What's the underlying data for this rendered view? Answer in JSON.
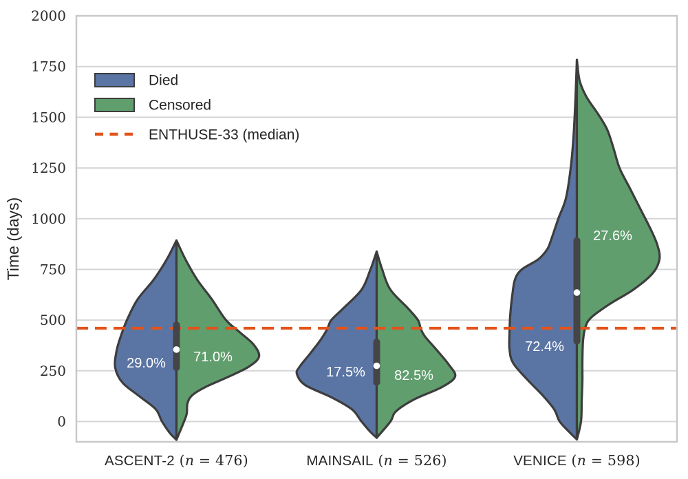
{
  "figure": {
    "background": "#ffffff"
  },
  "colors": {
    "died_fill": "#5a74a4",
    "censored_fill": "#609e6e",
    "violin_outline": "#3d3d3d",
    "inner_box": "#454547",
    "median_dot": "#ffffff",
    "reference_line": "#e2531c",
    "grid_line": "#d6d6da",
    "spine": "#c8c8cc",
    "text": "#262626"
  },
  "chart_data": {
    "type": "violin-split",
    "title": "",
    "xlabel": "",
    "ylabel": "Time (days)",
    "ylim": [
      -100,
      2000
    ],
    "yticks": [
      0,
      250,
      500,
      750,
      1000,
      1250,
      1500,
      1750,
      2000
    ],
    "grid": "horizontal",
    "legend": {
      "position": "upper-left",
      "entries": [
        {
          "label": "Died",
          "type": "patch",
          "color": "#5a74a4"
        },
        {
          "label": "Censored",
          "type": "patch",
          "color": "#609e6e"
        },
        {
          "label": "ENTHUSE-33 (median)",
          "type": "dashed-line",
          "color": "#e2531c"
        }
      ]
    },
    "reference_line": {
      "label": "ENTHUSE-33 (median)",
      "value_days": 460,
      "style": "dashed"
    },
    "groups": [
      {
        "name": "ASCENT-2",
        "n": 476,
        "x_label": "ASCENT-2 (n = 476)",
        "died_pct_label": "29.0%",
        "censored_pct_label": "71.0%",
        "median_days": 355,
        "iqr_days": [
          250,
          492
        ],
        "range_days": [
          -90,
          893
        ],
        "died_label": {
          "day": 290,
          "dx": -44
        },
        "censored_label": {
          "day": 320,
          "dx": 53
        },
        "died_profile": [
          [
            893,
            0
          ],
          [
            800,
            14
          ],
          [
            700,
            33
          ],
          [
            600,
            57
          ],
          [
            500,
            72
          ],
          [
            430,
            80
          ],
          [
            350,
            87
          ],
          [
            265,
            89
          ],
          [
            190,
            78
          ],
          [
            120,
            52
          ],
          [
            60,
            30
          ],
          [
            0,
            21
          ],
          [
            -55,
            10
          ],
          [
            -90,
            0
          ]
        ],
        "censored_profile": [
          [
            893,
            0
          ],
          [
            800,
            13
          ],
          [
            700,
            30
          ],
          [
            600,
            52
          ],
          [
            500,
            72
          ],
          [
            440,
            92
          ],
          [
            380,
            112
          ],
          [
            320,
            120
          ],
          [
            270,
            105
          ],
          [
            220,
            75
          ],
          [
            170,
            42
          ],
          [
            130,
            23
          ],
          [
            90,
            16
          ],
          [
            40,
            15
          ],
          [
            0,
            11
          ],
          [
            -90,
            0
          ]
        ]
      },
      {
        "name": "MAINSAIL",
        "n": 526,
        "x_label": "MAINSAIL (n = 526)",
        "died_pct_label": "17.5%",
        "censored_pct_label": "82.5%",
        "median_days": 275,
        "iqr_days": [
          178,
          408
        ],
        "range_days": [
          -80,
          838
        ],
        "died_label": {
          "day": 246,
          "dx": -45
        },
        "censored_label": {
          "day": 229,
          "dx": 54
        },
        "died_profile": [
          [
            838,
            0
          ],
          [
            750,
            9
          ],
          [
            650,
            22
          ],
          [
            560,
            48
          ],
          [
            500,
            66
          ],
          [
            455,
            72
          ],
          [
            400,
            82
          ],
          [
            330,
            98
          ],
          [
            270,
            112
          ],
          [
            235,
            116
          ],
          [
            180,
            104
          ],
          [
            120,
            66
          ],
          [
            60,
            36
          ],
          [
            0,
            22
          ],
          [
            -48,
            10
          ],
          [
            -80,
            0
          ]
        ],
        "censored_profile": [
          [
            838,
            0
          ],
          [
            750,
            8
          ],
          [
            650,
            20
          ],
          [
            560,
            45
          ],
          [
            500,
            60
          ],
          [
            458,
            64
          ],
          [
            420,
            70
          ],
          [
            350,
            88
          ],
          [
            280,
            105
          ],
          [
            222,
            114
          ],
          [
            170,
            95
          ],
          [
            110,
            55
          ],
          [
            50,
            28
          ],
          [
            0,
            20
          ],
          [
            -80,
            0
          ]
        ]
      },
      {
        "name": "VENICE",
        "n": 598,
        "x_label": "VENICE (n = 598)",
        "died_pct_label": "72.4%",
        "censored_pct_label": "27.6%",
        "median_days": 636,
        "iqr_days": [
          380,
          908
        ],
        "range_days": [
          -88,
          1783
        ],
        "died_label": {
          "day": 371,
          "dx": -47
        },
        "censored_label": {
          "day": 918,
          "dx": 52
        },
        "died_profile": [
          [
            1783,
            0
          ],
          [
            1600,
            2
          ],
          [
            1400,
            5
          ],
          [
            1250,
            9
          ],
          [
            1100,
            16
          ],
          [
            1000,
            27
          ],
          [
            900,
            37
          ],
          [
            850,
            43
          ],
          [
            800,
            56
          ],
          [
            750,
            80
          ],
          [
            700,
            90
          ],
          [
            620,
            94
          ],
          [
            520,
            97
          ],
          [
            430,
            98
          ],
          [
            360,
            98
          ],
          [
            290,
            93
          ],
          [
            210,
            73
          ],
          [
            130,
            50
          ],
          [
            60,
            33
          ],
          [
            0,
            25
          ],
          [
            -55,
            10
          ],
          [
            -88,
            0
          ]
        ],
        "censored_profile": [
          [
            1783,
            0
          ],
          [
            1680,
            4
          ],
          [
            1600,
            14
          ],
          [
            1520,
            30
          ],
          [
            1440,
            44
          ],
          [
            1350,
            53
          ],
          [
            1250,
            62
          ],
          [
            1150,
            77
          ],
          [
            1050,
            92
          ],
          [
            950,
            107
          ],
          [
            870,
            117
          ],
          [
            800,
            120
          ],
          [
            730,
            110
          ],
          [
            650,
            82
          ],
          [
            580,
            48
          ],
          [
            510,
            20
          ],
          [
            460,
            12
          ],
          [
            400,
            9
          ],
          [
            300,
            8
          ],
          [
            200,
            8
          ],
          [
            100,
            7
          ],
          [
            0,
            6
          ],
          [
            -88,
            0
          ]
        ]
      }
    ]
  }
}
